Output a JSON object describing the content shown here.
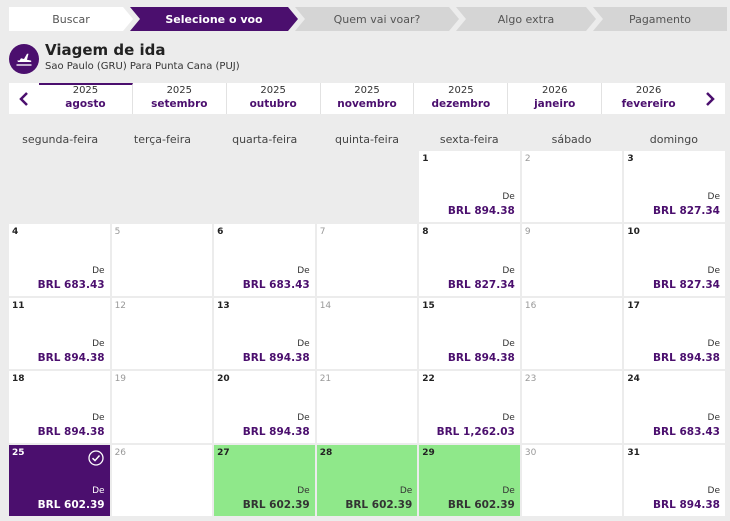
{
  "steps": [
    {
      "label": "Buscar",
      "state": "done"
    },
    {
      "label": "Selecione o voo",
      "state": "active"
    },
    {
      "label": "Quem vai voar?",
      "state": "todo"
    },
    {
      "label": "Algo extra",
      "state": "todo"
    },
    {
      "label": "Pagamento",
      "state": "todo"
    }
  ],
  "header": {
    "title": "Viagem de ida",
    "subtitle": "Sao Paulo (GRU) Para Punta Cana (PUJ)",
    "icon": "airplane-icon"
  },
  "months": [
    {
      "year": "2025",
      "month": "agosto",
      "active": true
    },
    {
      "year": "2025",
      "month": "setembro"
    },
    {
      "year": "2025",
      "month": "outubro"
    },
    {
      "year": "2025",
      "month": "novembro"
    },
    {
      "year": "2025",
      "month": "dezembro"
    },
    {
      "year": "2026",
      "month": "janeiro"
    },
    {
      "year": "2026",
      "month": "fevereiro"
    }
  ],
  "weekdays": [
    "segunda-feira",
    "terça-feira",
    "quarta-feira",
    "quinta-feira",
    "sexta-feira",
    "sábado",
    "domingo"
  ],
  "calendar": {
    "leading_empty": 4,
    "from_label": "De",
    "days": [
      {
        "day": "1",
        "price": "BRL 894.38"
      },
      {
        "day": "2",
        "disabled": true
      },
      {
        "day": "3",
        "price": "BRL 827.34"
      },
      {
        "day": "4",
        "price": "BRL 683.43"
      },
      {
        "day": "5",
        "disabled": true
      },
      {
        "day": "6",
        "price": "BRL 683.43"
      },
      {
        "day": "7",
        "disabled": true
      },
      {
        "day": "8",
        "price": "BRL 827.34"
      },
      {
        "day": "9",
        "disabled": true
      },
      {
        "day": "10",
        "price": "BRL 827.34"
      },
      {
        "day": "11",
        "price": "BRL 894.38"
      },
      {
        "day": "12",
        "disabled": true
      },
      {
        "day": "13",
        "price": "BRL 894.38"
      },
      {
        "day": "14",
        "disabled": true
      },
      {
        "day": "15",
        "price": "BRL 894.38"
      },
      {
        "day": "16",
        "disabled": true
      },
      {
        "day": "17",
        "price": "BRL 894.38"
      },
      {
        "day": "18",
        "price": "BRL 894.38"
      },
      {
        "day": "19",
        "disabled": true
      },
      {
        "day": "20",
        "price": "BRL 894.38"
      },
      {
        "day": "21",
        "disabled": true
      },
      {
        "day": "22",
        "price": "BRL 1,262.03"
      },
      {
        "day": "23",
        "disabled": true
      },
      {
        "day": "24",
        "price": "BRL 683.43"
      },
      {
        "day": "25",
        "price": "BRL 602.39",
        "state": "selected"
      },
      {
        "day": "26",
        "disabled": true
      },
      {
        "day": "27",
        "price": "BRL 602.39",
        "state": "green"
      },
      {
        "day": "28",
        "price": "BRL 602.39",
        "state": "green"
      },
      {
        "day": "29",
        "price": "BRL 602.39",
        "state": "green"
      },
      {
        "day": "30",
        "disabled": true
      },
      {
        "day": "31",
        "price": "BRL 894.38"
      }
    ]
  },
  "colors": {
    "brand": "#4b0f6e",
    "cheapest": "#8fe88a"
  }
}
